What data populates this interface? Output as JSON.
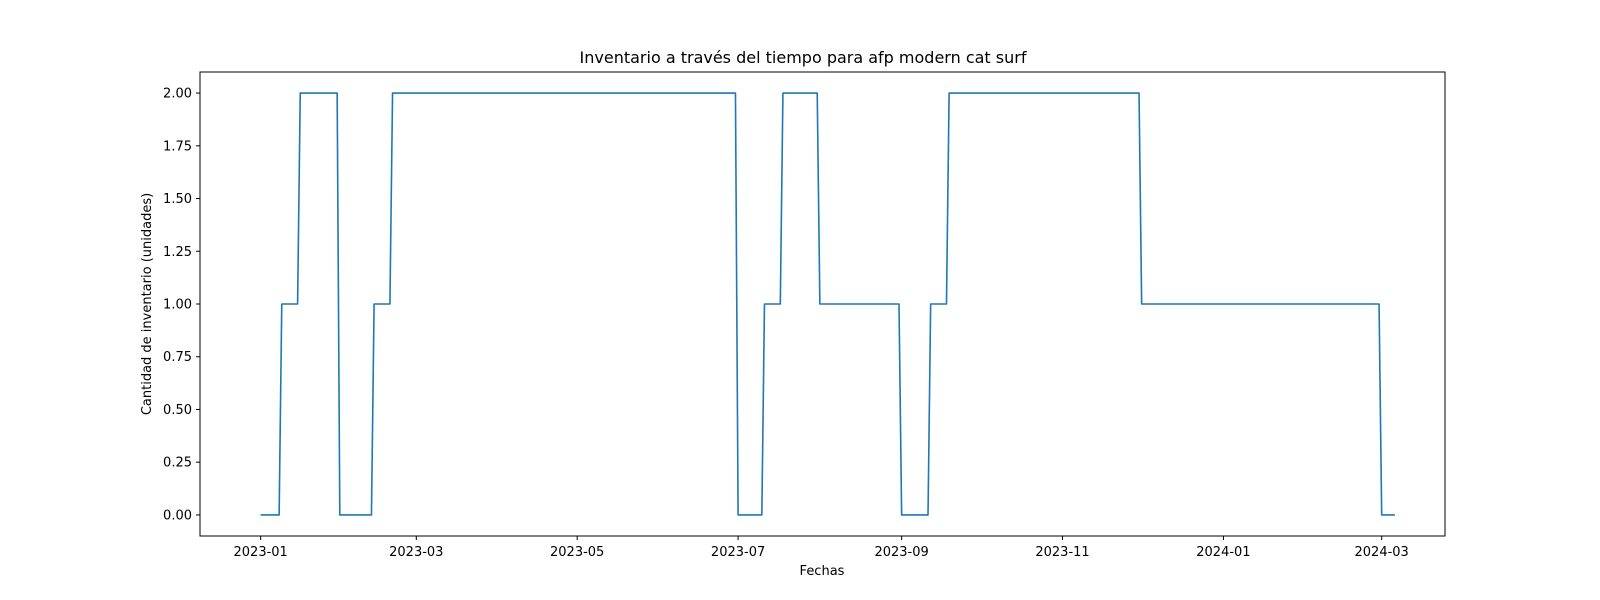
{
  "chart_data": {
    "type": "line",
    "title": "Inventario a través del tiempo para afp modern cat surf",
    "xlabel": "Fechas",
    "ylabel": "Cantidad de inventario (unidades)",
    "line_color": "#1f77b4",
    "grid": false,
    "legend": "none",
    "xlim": [
      "2022-12-09",
      "2024-03-25"
    ],
    "ylim": [
      -0.1,
      2.1
    ],
    "x_ticks": [
      "2023-01",
      "2023-03",
      "2023-05",
      "2023-07",
      "2023-09",
      "2023-11",
      "2024-01",
      "2024-03"
    ],
    "y_ticks": [
      "0.00",
      "0.25",
      "0.50",
      "0.75",
      "1.00",
      "1.25",
      "1.50",
      "1.75",
      "2.00"
    ],
    "series": [
      {
        "x": [
          "2023-01-01",
          "2023-01-08",
          "2023-01-09",
          "2023-01-15",
          "2023-01-16",
          "2023-01-30",
          "2023-01-31",
          "2023-02-12",
          "2023-02-13",
          "2023-02-19",
          "2023-02-20",
          "2023-06-30",
          "2023-07-01",
          "2023-07-10",
          "2023-07-11",
          "2023-07-17",
          "2023-07-18",
          "2023-07-31",
          "2023-08-01",
          "2023-08-31",
          "2023-09-01",
          "2023-09-11",
          "2023-09-12",
          "2023-09-18",
          "2023-09-19",
          "2023-11-30",
          "2023-12-01",
          "2024-02-29",
          "2024-03-01",
          "2024-03-06"
        ],
        "values": [
          0,
          0,
          1,
          1,
          2,
          2,
          0,
          0,
          1,
          1,
          2,
          2,
          0,
          0,
          1,
          1,
          2,
          2,
          1,
          1,
          0,
          0,
          1,
          1,
          2,
          2,
          1,
          1,
          0,
          0
        ]
      }
    ]
  }
}
